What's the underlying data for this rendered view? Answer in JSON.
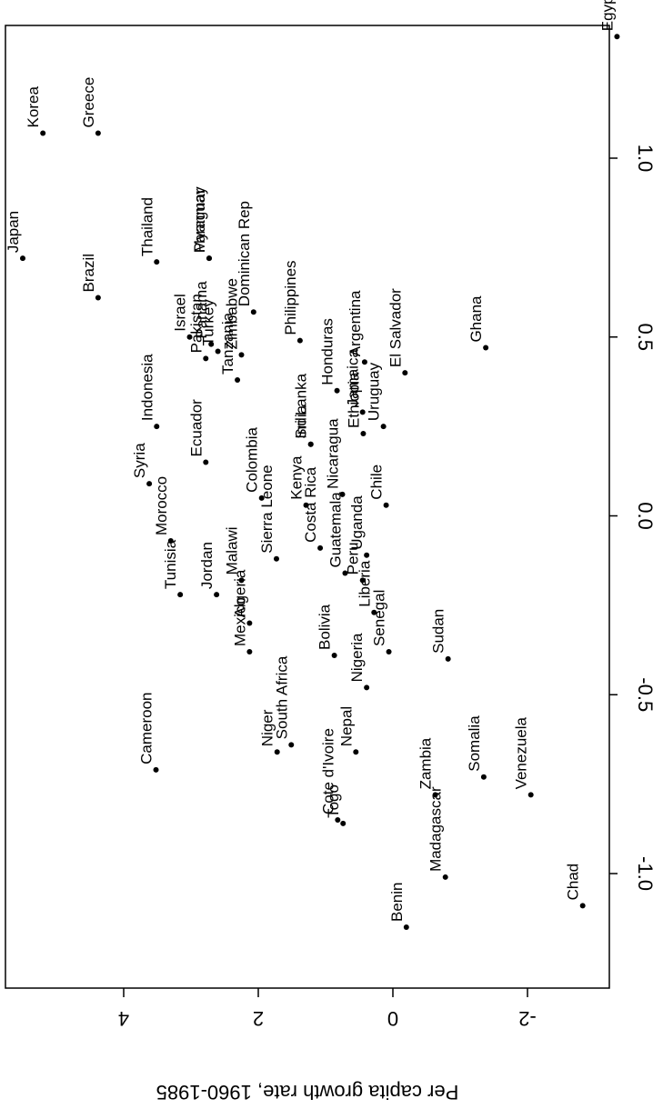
{
  "chart_data": {
    "type": "scatter",
    "title": "",
    "xlabel": "",
    "ylabel": "Per capita growth rate, 1960-1985",
    "xlim": [
      -1.2,
      1.4
    ],
    "ylim": [
      -2.9,
      5.6
    ],
    "x_ticks": [
      -1.0,
      -0.5,
      0.0,
      0.5,
      1.0
    ],
    "x_tick_labels": [
      "-1.0",
      "-0.5",
      "0.0",
      "0.5",
      "1.0"
    ],
    "y_ticks": [
      -2,
      0,
      2,
      4
    ],
    "y_tick_labels": [
      "-2",
      "0",
      "2",
      "4"
    ],
    "grid": false,
    "orientation": "rotated 180 degrees",
    "points": [
      {
        "label": "Egypt",
        "x": 1.34,
        "y": -3.33
      },
      {
        "label": "Korea",
        "x": 1.07,
        "y": 5.2
      },
      {
        "label": "Greece",
        "x": 1.07,
        "y": 4.38
      },
      {
        "label": "Japan",
        "x": 0.72,
        "y": 5.5
      },
      {
        "label": "Brazil",
        "x": 0.61,
        "y": 4.38
      },
      {
        "label": "Thailand",
        "x": 0.71,
        "y": 3.51
      },
      {
        "label": "Myanmar",
        "x": 0.72,
        "y": 2.73
      },
      {
        "label": "Paraguay",
        "x": 0.72,
        "y": 2.73
      },
      {
        "label": "Dominican Rep",
        "x": 0.57,
        "y": 2.07
      },
      {
        "label": "Zimbabwe",
        "x": 0.45,
        "y": 2.25
      },
      {
        "label": "Israel",
        "x": 0.5,
        "y": 3.02
      },
      {
        "label": "Panama",
        "x": 0.48,
        "y": 2.7
      },
      {
        "label": "Turkey",
        "x": 0.46,
        "y": 2.6
      },
      {
        "label": "Pakistan",
        "x": 0.44,
        "y": 2.78
      },
      {
        "label": "Tanzania",
        "x": 0.38,
        "y": 2.31
      },
      {
        "label": "Argentina",
        "x": 0.43,
        "y": 0.42
      },
      {
        "label": "Philippines",
        "x": 0.49,
        "y": 1.38
      },
      {
        "label": "Indonesia",
        "x": 0.25,
        "y": 3.51
      },
      {
        "label": "Ecuador",
        "x": 0.15,
        "y": 2.78
      },
      {
        "label": "Syria",
        "x": 0.09,
        "y": 3.62
      },
      {
        "label": "Honduras",
        "x": 0.35,
        "y": 0.83
      },
      {
        "label": "India",
        "x": 0.2,
        "y": 1.22
      },
      {
        "label": "Sri Lanka",
        "x": 0.2,
        "y": 1.22
      },
      {
        "label": "Jamaica",
        "x": 0.29,
        "y": 0.45
      },
      {
        "label": "Ethiopia",
        "x": 0.23,
        "y": 0.44
      },
      {
        "label": "Uruguay",
        "x": 0.25,
        "y": 0.14
      },
      {
        "label": "El Salvador",
        "x": 0.4,
        "y": -0.18
      },
      {
        "label": "Ghana",
        "x": 0.47,
        "y": -1.38
      },
      {
        "label": "Colombia",
        "x": 0.05,
        "y": 1.95
      },
      {
        "label": "Kenya",
        "x": 0.03,
        "y": 1.29
      },
      {
        "label": "Nicaragua",
        "x": 0.06,
        "y": 0.75
      },
      {
        "label": "Costa Rica",
        "x": -0.09,
        "y": 1.08
      },
      {
        "label": "Chile",
        "x": 0.03,
        "y": 0.1
      },
      {
        "label": "Uganda",
        "x": -0.11,
        "y": 0.39
      },
      {
        "label": "Morocco",
        "x": -0.07,
        "y": 3.3
      },
      {
        "label": "Tunisia",
        "x": -0.22,
        "y": 3.16
      },
      {
        "label": "Jordan",
        "x": -0.22,
        "y": 2.62
      },
      {
        "label": "Malawi",
        "x": -0.18,
        "y": 2.25
      },
      {
        "label": "Algeria",
        "x": -0.3,
        "y": 2.13
      },
      {
        "label": "Mexico",
        "x": -0.38,
        "y": 2.13
      },
      {
        "label": "Sierra Leone",
        "x": -0.12,
        "y": 1.73
      },
      {
        "label": "Guatemala",
        "x": -0.16,
        "y": 0.71
      },
      {
        "label": "Peru",
        "x": -0.18,
        "y": 0.45
      },
      {
        "label": "Liberia",
        "x": -0.27,
        "y": 0.28
      },
      {
        "label": "Senegal",
        "x": -0.38,
        "y": 0.06
      },
      {
        "label": "Nigeria",
        "x": -0.48,
        "y": 0.39
      },
      {
        "label": "Bolivia",
        "x": -0.39,
        "y": 0.87
      },
      {
        "label": "Sudan",
        "x": -0.4,
        "y": -0.82
      },
      {
        "label": "Cameroon",
        "x": -0.71,
        "y": 3.52
      },
      {
        "label": "Niger",
        "x": -0.66,
        "y": 1.72
      },
      {
        "label": "South Africa",
        "x": -0.64,
        "y": 1.51
      },
      {
        "label": "Cote d'Ivoire",
        "x": -0.85,
        "y": 0.82
      },
      {
        "label": "Togo",
        "x": -0.86,
        "y": 0.74
      },
      {
        "label": "Nepal",
        "x": -0.66,
        "y": 0.55
      },
      {
        "label": "Zambia",
        "x": -0.78,
        "y": -0.63
      },
      {
        "label": "Madagascar",
        "x": -1.01,
        "y": -0.78
      },
      {
        "label": "Somalia",
        "x": -0.73,
        "y": -1.35
      },
      {
        "label": "Venezuela",
        "x": -0.78,
        "y": -2.05
      },
      {
        "label": "Benin",
        "x": -1.15,
        "y": -0.2
      },
      {
        "label": "Chad",
        "x": -1.09,
        "y": -2.82
      }
    ]
  }
}
